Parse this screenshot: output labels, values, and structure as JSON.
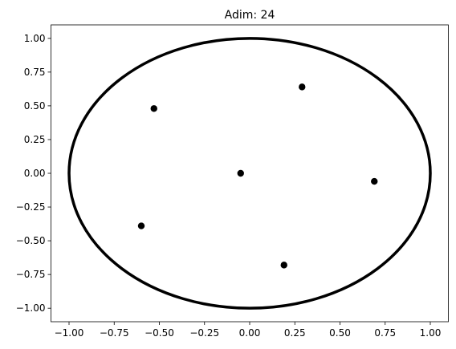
{
  "chart_data": {
    "type": "scatter",
    "title": "Adim: 24",
    "x": [
      -0.53,
      0.29,
      -0.05,
      0.69,
      -0.6,
      0.19
    ],
    "values": [
      0.48,
      0.64,
      0.0,
      -0.06,
      -0.39,
      -0.68
    ],
    "color": "#000000",
    "circle": {
      "cx": 0,
      "cy": 0,
      "r": 1,
      "color": "#000000"
    },
    "xlim": [
      -1.1,
      1.1
    ],
    "ylim": [
      -1.1,
      1.1
    ],
    "xticks": [
      {
        "value": -1,
        "label": "−1.00"
      },
      {
        "value": -0.75,
        "label": "−0.75"
      },
      {
        "value": -0.5,
        "label": "−0.50"
      },
      {
        "value": -0.25,
        "label": "−0.25"
      },
      {
        "value": 0,
        "label": "0.00"
      },
      {
        "value": 0.25,
        "label": "0.25"
      },
      {
        "value": 0.5,
        "label": "0.50"
      },
      {
        "value": 0.75,
        "label": "0.75"
      },
      {
        "value": 1,
        "label": "1.00"
      }
    ],
    "yticks": [
      {
        "value": -1,
        "label": "−1.00"
      },
      {
        "value": -0.75,
        "label": "−0.75"
      },
      {
        "value": -0.5,
        "label": "−0.50"
      },
      {
        "value": -0.25,
        "label": "−0.25"
      },
      {
        "value": 0,
        "label": "0.00"
      },
      {
        "value": 0.25,
        "label": "0.25"
      },
      {
        "value": 0.5,
        "label": "0.50"
      },
      {
        "value": 0.75,
        "label": "0.75"
      },
      {
        "value": 1,
        "label": "1.00"
      }
    ]
  }
}
